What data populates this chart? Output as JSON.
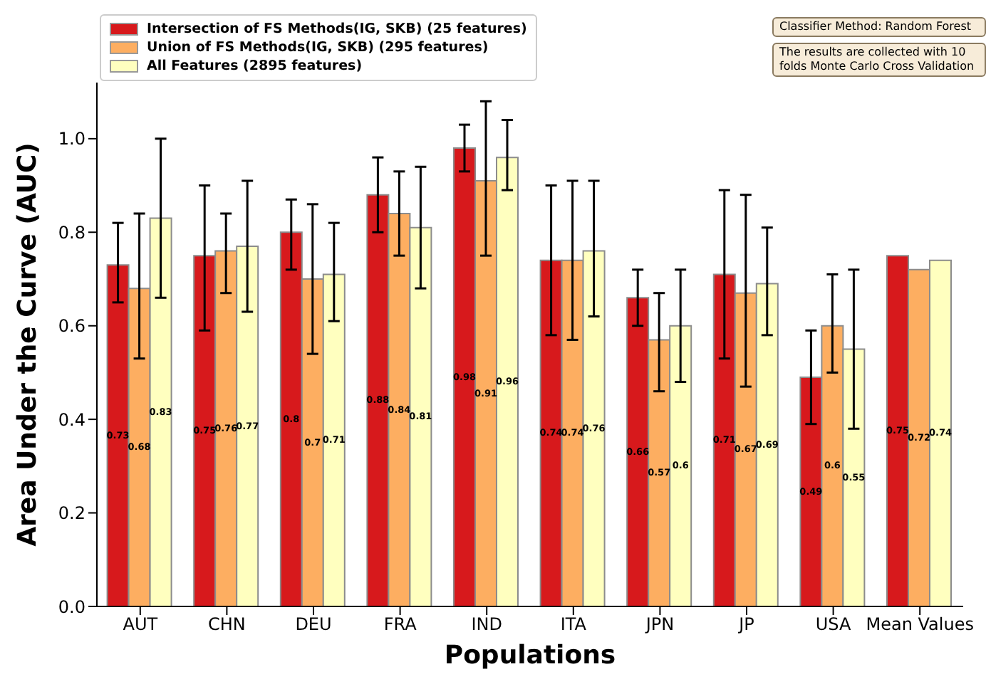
{
  "chart_data": {
    "type": "bar",
    "xlabel": "Populations",
    "ylabel": "Area Under the Curve (AUC)",
    "categories": [
      "AUT",
      "CHN",
      "DEU",
      "FRA",
      "IND",
      "ITA",
      "JPN",
      "JP",
      "USA",
      "Mean Values"
    ],
    "series": [
      {
        "name": "Intersection of FS Methods(IG, SKB) (25 features)",
        "color": "#d7191c",
        "values": [
          0.73,
          0.75,
          0.8,
          0.88,
          0.98,
          0.74,
          0.66,
          0.71,
          0.49,
          0.75
        ],
        "errors": [
          [
            0.65,
            0.82
          ],
          [
            0.59,
            0.9
          ],
          [
            0.72,
            0.87
          ],
          [
            0.8,
            0.96
          ],
          [
            0.93,
            1.03
          ],
          [
            0.58,
            0.9
          ],
          [
            0.6,
            0.72
          ],
          [
            0.53,
            0.89
          ],
          [
            0.39,
            0.59
          ],
          null
        ]
      },
      {
        "name": "Union of FS Methods(IG, SKB) (295 features)",
        "color": "#fdae61",
        "values": [
          0.68,
          0.76,
          0.7,
          0.84,
          0.91,
          0.74,
          0.57,
          0.67,
          0.6,
          0.72
        ],
        "errors": [
          [
            0.53,
            0.84
          ],
          [
            0.67,
            0.84
          ],
          [
            0.54,
            0.86
          ],
          [
            0.75,
            0.93
          ],
          [
            0.75,
            1.08
          ],
          [
            0.57,
            0.91
          ],
          [
            0.46,
            0.67
          ],
          [
            0.47,
            0.88
          ],
          [
            0.5,
            0.71
          ],
          null
        ]
      },
      {
        "name": "All Features (2895 features)",
        "color": "#ffffbf",
        "values": [
          0.83,
          0.77,
          0.71,
          0.81,
          0.96,
          0.76,
          0.6,
          0.69,
          0.55,
          0.74
        ],
        "errors": [
          [
            0.66,
            1.0
          ],
          [
            0.63,
            0.91
          ],
          [
            0.61,
            0.82
          ],
          [
            0.68,
            0.94
          ],
          [
            0.89,
            1.04
          ],
          [
            0.62,
            0.91
          ],
          [
            0.48,
            0.72
          ],
          [
            0.58,
            0.81
          ],
          [
            0.38,
            0.72
          ],
          null
        ]
      }
    ],
    "ylim": [
      0,
      1.12
    ],
    "yticks": [
      {
        "value": 0,
        "label": "0.0"
      },
      {
        "value": 0.2,
        "label": "0.2"
      },
      {
        "value": 0.4,
        "label": "0.4"
      },
      {
        "value": 0.6,
        "label": "0.6"
      },
      {
        "value": 0.8,
        "label": "0.8"
      },
      {
        "value": 1,
        "label": "1.0"
      }
    ],
    "grid": false,
    "legend": "top left",
    "data_labels": true,
    "annotations": [
      "Classifier Method: Random Forest",
      "The results are collected with 10 folds Monte Carlo Cross Validation"
    ]
  }
}
